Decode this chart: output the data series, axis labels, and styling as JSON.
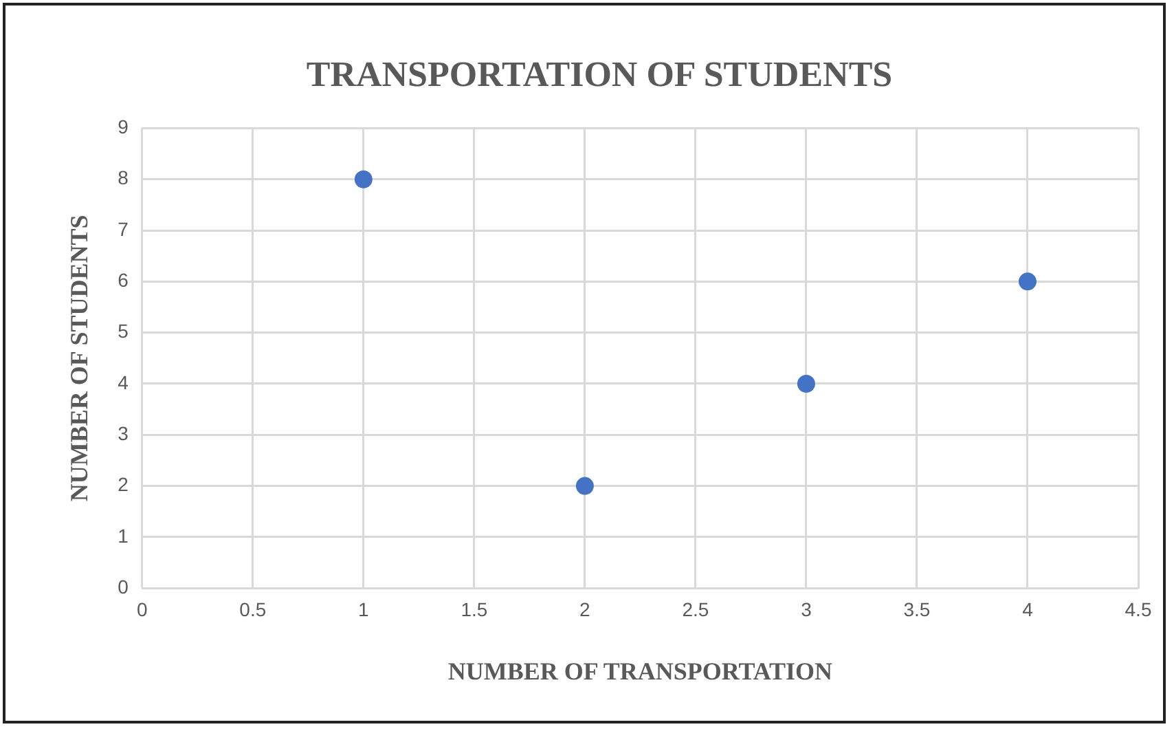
{
  "chart_data": {
    "type": "scatter",
    "title": "TRANSPORTATION OF STUDENTS",
    "xlabel": "NUMBER OF TRANSPORTATION",
    "ylabel": "NUMBER OF STUDENTS",
    "x": [
      1,
      2,
      3,
      4
    ],
    "series": [
      {
        "color": "#4472c4",
        "values": [
          8,
          2,
          4,
          6
        ]
      }
    ],
    "xlim": [
      0,
      4.5
    ],
    "xticks": [
      0,
      0.5,
      1,
      1.5,
      2,
      2.5,
      3,
      3.5,
      4,
      4.5
    ],
    "ylim": [
      0,
      9
    ],
    "yticks": [
      0,
      1,
      2,
      3,
      4,
      5,
      6,
      7,
      8,
      9
    ],
    "grid": true,
    "legend": false,
    "marker": "circle"
  }
}
